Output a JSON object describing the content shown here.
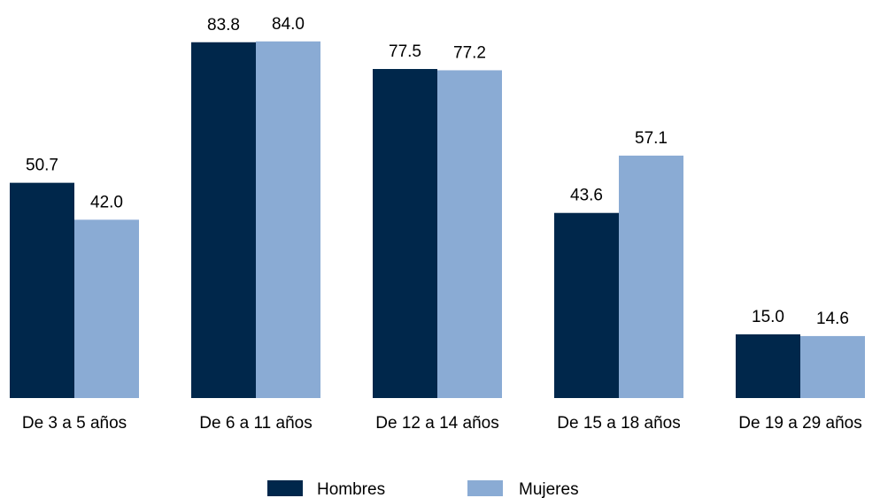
{
  "chart_data": {
    "type": "bar",
    "categories": [
      "De 3 a 5 años",
      "De 6 a 11 años",
      "De 12 a 14 años",
      "De 15 a 18 años",
      "De 19 a 29 años"
    ],
    "series": [
      {
        "name": "Hombres",
        "color": "#00274b",
        "values": [
          50.7,
          83.8,
          77.5,
          43.6,
          15.0
        ],
        "labels": [
          "50.7",
          "83.8",
          "77.5",
          "43.6",
          "15.0"
        ]
      },
      {
        "name": "Mujeres",
        "color": "#8aabd4",
        "values": [
          42.0,
          84.0,
          77.2,
          57.1,
          14.6
        ],
        "labels": [
          "42.0",
          "84.0",
          "77.2",
          "57.1",
          "14.6"
        ]
      }
    ],
    "ylim": [
      0,
      100
    ],
    "grid": false,
    "legend_position": "bottom-center"
  }
}
